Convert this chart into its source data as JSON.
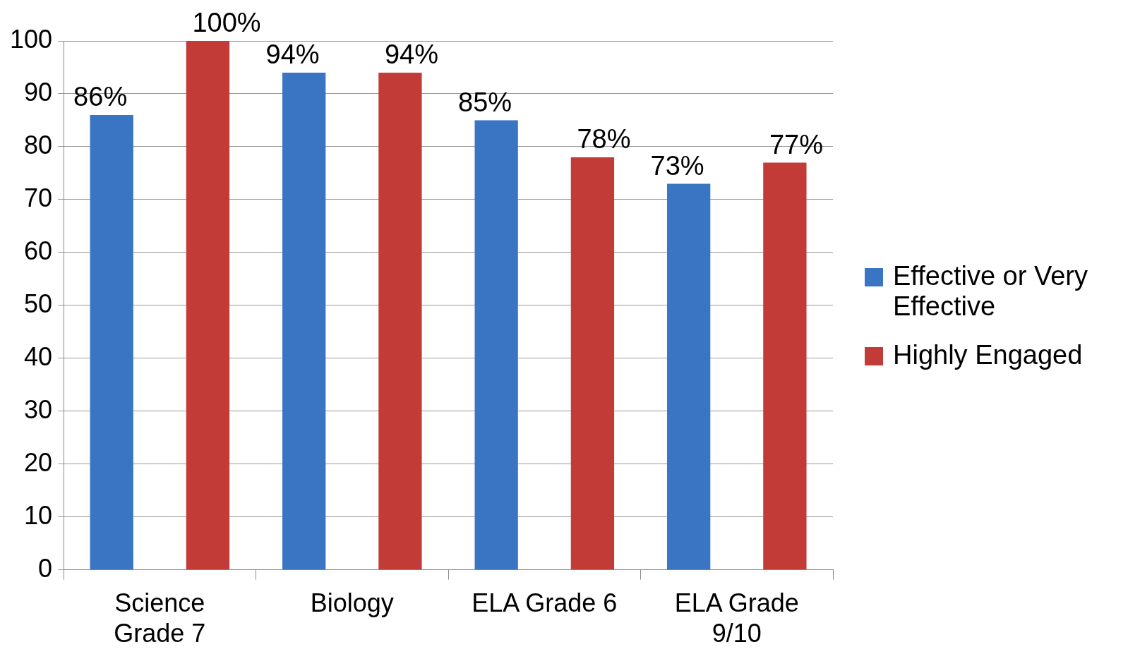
{
  "chart_data": {
    "type": "bar",
    "categories": [
      "Science Grade 7",
      "Biology",
      "ELA Grade 6",
      "ELA Grade 9/10"
    ],
    "series": [
      {
        "name": "Effective or Very Effective",
        "color": "#3a75c4",
        "values": [
          86,
          94,
          85,
          73
        ],
        "value_labels": [
          "86%",
          "94%",
          "85%",
          "73%"
        ]
      },
      {
        "name": "Highly Engaged",
        "color": "#c23b37",
        "values": [
          100,
          94,
          78,
          77
        ],
        "value_labels": [
          "100%",
          "94%",
          "78%",
          "77%"
        ]
      }
    ],
    "ylim": [
      0,
      100
    ],
    "yticks": [
      0,
      10,
      20,
      30,
      40,
      50,
      60,
      70,
      80,
      90,
      100
    ],
    "grid": "y",
    "legend": "right"
  }
}
